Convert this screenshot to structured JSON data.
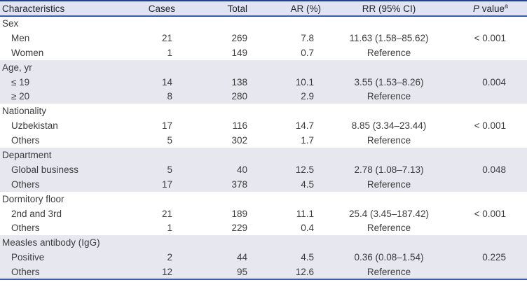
{
  "table": {
    "headers": [
      "Characteristics",
      "Cases",
      "Total",
      "AR (%)",
      "RR (95% CI)",
      {
        "italic": "P",
        "rest": " value",
        "sup": "a"
      }
    ],
    "groups": [
      {
        "label": "Sex",
        "shaded": false,
        "rows": [
          {
            "label": "Men",
            "cases": "21",
            "total": "269",
            "ar": "7.8",
            "rr": "11.63 (1.58–85.62)",
            "p": "< 0.001"
          },
          {
            "label": "Women",
            "cases": "1",
            "total": "149",
            "ar": "0.7",
            "rr": "Reference",
            "p": ""
          }
        ]
      },
      {
        "label": "Age, yr",
        "shaded": true,
        "rows": [
          {
            "label": "≤ 19",
            "cases": "14",
            "total": "138",
            "ar": "10.1",
            "rr": "3.55 (1.53–8.26)",
            "p": "0.004"
          },
          {
            "label": "≥ 20",
            "cases": "8",
            "total": "280",
            "ar": "2.9",
            "rr": "Reference",
            "p": ""
          }
        ]
      },
      {
        "label": "Nationality",
        "shaded": false,
        "rows": [
          {
            "label": "Uzbekistan",
            "cases": "17",
            "total": "116",
            "ar": "14.7",
            "rr": "8.85 (3.34–23.44)",
            "p": "< 0.001"
          },
          {
            "label": "Others",
            "cases": "5",
            "total": "302",
            "ar": "1.7",
            "rr": "Reference",
            "p": ""
          }
        ]
      },
      {
        "label": "Department",
        "shaded": true,
        "rows": [
          {
            "label": "Global business",
            "cases": "5",
            "total": "40",
            "ar": "12.5",
            "rr": "2.78 (1.08–7.13)",
            "p": "0.048"
          },
          {
            "label": "Others",
            "cases": "17",
            "total": "378",
            "ar": "4.5",
            "rr": "Reference",
            "p": ""
          }
        ]
      },
      {
        "label": "Dormitory floor",
        "shaded": false,
        "rows": [
          {
            "label": "2nd and 3rd",
            "cases": "21",
            "total": "189",
            "ar": "11.1",
            "rr": "25.4 (3.45–187.42)",
            "p": "< 0.001"
          },
          {
            "label": "Others",
            "cases": "1",
            "total": "229",
            "ar": "0.4",
            "rr": "Reference",
            "p": ""
          }
        ]
      },
      {
        "label": "Measles antibody (IgG)",
        "shaded": true,
        "rows": [
          {
            "label": "Positive",
            "cases": "2",
            "total": "44",
            "ar": "4.5",
            "rr": "0.36 (0.08–1.54)",
            "p": "0.225"
          },
          {
            "label": "Others",
            "cases": "12",
            "total": "95",
            "ar": "12.6",
            "rr": "Reference",
            "p": ""
          }
        ]
      }
    ],
    "colors": {
      "top_border": "#24418f",
      "accent_border": "#3c5cab",
      "header_bg": "#e0e3f1",
      "band_bg": "#e7e7f0",
      "body_text": "#3c3c3c",
      "header_text": "#20242f"
    }
  }
}
